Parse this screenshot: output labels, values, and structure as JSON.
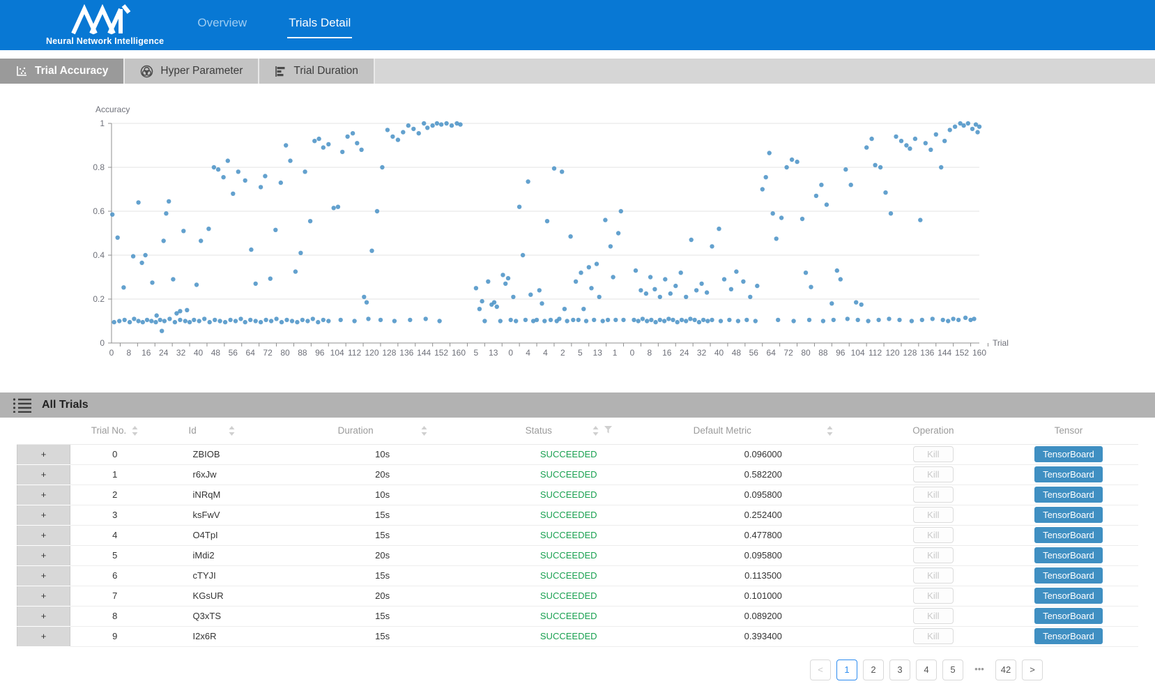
{
  "header": {
    "logo_title": "Neural Network Intelligence",
    "nav": [
      {
        "label": "Overview",
        "active": false
      },
      {
        "label": "Trials Detail",
        "active": true
      }
    ]
  },
  "tabs": [
    {
      "label": "Trial Accuracy",
      "icon": "scatter-plot-icon",
      "active": true
    },
    {
      "label": "Hyper Parameter",
      "icon": "wheel-icon",
      "active": false
    },
    {
      "label": "Trial Duration",
      "icon": "bar-chart-icon",
      "active": false
    }
  ],
  "colors": {
    "navbar": "#0878d4",
    "dot": "#4d94c7",
    "succeeded": "#19a050",
    "tensorboard_button": "#3f8fc2",
    "pager_active": "#2d8cf0"
  },
  "chart_data": {
    "type": "scatter",
    "title": "Accuracy",
    "xlabel": "Trial",
    "ylabel": "Accuracy",
    "ylim": [
      0,
      1
    ],
    "grid": true,
    "y_ticks": [
      0,
      0.2,
      0.4,
      0.6,
      0.8,
      1
    ],
    "x_tick_labels": [
      "0",
      "8",
      "16",
      "24",
      "32",
      "40",
      "48",
      "56",
      "64",
      "72",
      "80",
      "88",
      "96",
      "104",
      "112",
      "120",
      "128",
      "136",
      "144",
      "152",
      "160",
      "5",
      "13",
      "0",
      "4",
      "4",
      "2",
      "5",
      "13",
      "1",
      "0",
      "8",
      "16",
      "24",
      "32",
      "40",
      "48",
      "56",
      "64",
      "72",
      "80",
      "88",
      "96",
      "104",
      "112",
      "120",
      "128",
      "136",
      "144",
      "152",
      "160"
    ],
    "points": [
      [
        0.05,
        0.585
      ],
      [
        0.15,
        0.095
      ],
      [
        0.35,
        0.48
      ],
      [
        0.45,
        0.1
      ],
      [
        0.7,
        0.253
      ],
      [
        0.75,
        0.105
      ],
      [
        1.05,
        0.095
      ],
      [
        1.25,
        0.395
      ],
      [
        1.3,
        0.11
      ],
      [
        1.55,
        0.64
      ],
      [
        1.55,
        0.1
      ],
      [
        1.75,
        0.365
      ],
      [
        1.8,
        0.095
      ],
      [
        1.95,
        0.4
      ],
      [
        2.05,
        0.105
      ],
      [
        2.3,
        0.1
      ],
      [
        2.35,
        0.275
      ],
      [
        2.55,
        0.095
      ],
      [
        2.6,
        0.125
      ],
      [
        2.8,
        0.105
      ],
      [
        2.9,
        0.055
      ],
      [
        3.0,
        0.465
      ],
      [
        3.05,
        0.1
      ],
      [
        3.15,
        0.59
      ],
      [
        3.3,
        0.645
      ],
      [
        3.35,
        0.11
      ],
      [
        3.55,
        0.29
      ],
      [
        3.65,
        0.095
      ],
      [
        3.75,
        0.135
      ],
      [
        3.95,
        0.145
      ],
      [
        3.95,
        0.105
      ],
      [
        4.15,
        0.51
      ],
      [
        4.25,
        0.1
      ],
      [
        4.35,
        0.15
      ],
      [
        4.5,
        0.095
      ],
      [
        4.75,
        0.105
      ],
      [
        4.9,
        0.265
      ],
      [
        5.05,
        0.1
      ],
      [
        5.15,
        0.465
      ],
      [
        5.35,
        0.11
      ],
      [
        5.6,
        0.52
      ],
      [
        5.65,
        0.095
      ],
      [
        5.9,
        0.8
      ],
      [
        5.95,
        0.105
      ],
      [
        6.15,
        0.79
      ],
      [
        6.25,
        0.1
      ],
      [
        6.45,
        0.755
      ],
      [
        6.55,
        0.095
      ],
      [
        6.7,
        0.83
      ],
      [
        6.85,
        0.105
      ],
      [
        7.0,
        0.68
      ],
      [
        7.15,
        0.1
      ],
      [
        7.3,
        0.78
      ],
      [
        7.45,
        0.11
      ],
      [
        7.7,
        0.74
      ],
      [
        7.7,
        0.095
      ],
      [
        8.0,
        0.105
      ],
      [
        8.05,
        0.425
      ],
      [
        8.3,
        0.27
      ],
      [
        8.3,
        0.1
      ],
      [
        8.6,
        0.71
      ],
      [
        8.6,
        0.095
      ],
      [
        8.85,
        0.76
      ],
      [
        8.9,
        0.105
      ],
      [
        9.15,
        0.293
      ],
      [
        9.2,
        0.1
      ],
      [
        9.45,
        0.515
      ],
      [
        9.5,
        0.11
      ],
      [
        9.75,
        0.73
      ],
      [
        9.8,
        0.095
      ],
      [
        10.05,
        0.9
      ],
      [
        10.1,
        0.105
      ],
      [
        10.3,
        0.83
      ],
      [
        10.4,
        0.1
      ],
      [
        10.6,
        0.325
      ],
      [
        10.7,
        0.095
      ],
      [
        10.9,
        0.41
      ],
      [
        11.0,
        0.105
      ],
      [
        11.15,
        0.78
      ],
      [
        11.3,
        0.1
      ],
      [
        11.45,
        0.555
      ],
      [
        11.6,
        0.11
      ],
      [
        11.7,
        0.92
      ],
      [
        11.9,
        0.095
      ],
      [
        11.95,
        0.93
      ],
      [
        12.2,
        0.89
      ],
      [
        12.2,
        0.105
      ],
      [
        12.5,
        0.905
      ],
      [
        12.5,
        0.1
      ],
      [
        12.8,
        0.615
      ],
      [
        13.05,
        0.62
      ],
      [
        13.2,
        0.105
      ],
      [
        13.3,
        0.87
      ],
      [
        13.6,
        0.94
      ],
      [
        13.9,
        0.955
      ],
      [
        14.0,
        0.1
      ],
      [
        14.15,
        0.91
      ],
      [
        14.4,
        0.88
      ],
      [
        14.55,
        0.21
      ],
      [
        14.7,
        0.185
      ],
      [
        14.8,
        0.11
      ],
      [
        15.0,
        0.42
      ],
      [
        15.3,
        0.6
      ],
      [
        15.5,
        0.105
      ],
      [
        15.6,
        0.8
      ],
      [
        15.9,
        0.97
      ],
      [
        16.2,
        0.94
      ],
      [
        16.3,
        0.1
      ],
      [
        16.5,
        0.925
      ],
      [
        16.8,
        0.96
      ],
      [
        17.1,
        0.99
      ],
      [
        17.2,
        0.105
      ],
      [
        17.4,
        0.975
      ],
      [
        17.7,
        0.955
      ],
      [
        18.0,
        1.0
      ],
      [
        18.1,
        0.11
      ],
      [
        18.2,
        0.98
      ],
      [
        18.5,
        0.99
      ],
      [
        18.75,
        1.0
      ],
      [
        18.9,
        0.1
      ],
      [
        19.0,
        0.995
      ],
      [
        19.3,
        1.0
      ],
      [
        19.6,
        0.99
      ],
      [
        19.9,
        1.0
      ],
      [
        20.1,
        0.995
      ],
      [
        21.0,
        0.25
      ],
      [
        21.2,
        0.155
      ],
      [
        21.35,
        0.19
      ],
      [
        21.5,
        0.1
      ],
      [
        21.7,
        0.28
      ],
      [
        21.9,
        0.175
      ],
      [
        22.05,
        0.185
      ],
      [
        22.2,
        0.165
      ],
      [
        22.4,
        0.1
      ],
      [
        22.55,
        0.31
      ],
      [
        22.7,
        0.27
      ],
      [
        22.85,
        0.295
      ],
      [
        23.0,
        0.105
      ],
      [
        23.15,
        0.21
      ],
      [
        23.3,
        0.1
      ],
      [
        23.5,
        0.62
      ],
      [
        23.7,
        0.4
      ],
      [
        23.85,
        0.105
      ],
      [
        24.0,
        0.735
      ],
      [
        24.15,
        0.22
      ],
      [
        24.3,
        0.1
      ],
      [
        24.5,
        0.105
      ],
      [
        24.65,
        0.24
      ],
      [
        24.8,
        0.18
      ],
      [
        24.95,
        0.1
      ],
      [
        25.1,
        0.555
      ],
      [
        25.3,
        0.105
      ],
      [
        25.5,
        0.795
      ],
      [
        25.65,
        0.1
      ],
      [
        25.8,
        0.11
      ],
      [
        25.95,
        0.78
      ],
      [
        26.1,
        0.155
      ],
      [
        26.25,
        0.1
      ],
      [
        26.45,
        0.485
      ],
      [
        26.6,
        0.105
      ],
      [
        26.75,
        0.28
      ],
      [
        26.9,
        0.105
      ],
      [
        27.05,
        0.32
      ],
      [
        27.2,
        0.155
      ],
      [
        27.35,
        0.1
      ],
      [
        27.5,
        0.345
      ],
      [
        27.65,
        0.25
      ],
      [
        27.8,
        0.105
      ],
      [
        27.95,
        0.36
      ],
      [
        28.1,
        0.21
      ],
      [
        28.3,
        0.1
      ],
      [
        28.45,
        0.56
      ],
      [
        28.6,
        0.105
      ],
      [
        28.75,
        0.44
      ],
      [
        28.9,
        0.3
      ],
      [
        29.05,
        0.105
      ],
      [
        29.2,
        0.5
      ],
      [
        29.35,
        0.6
      ],
      [
        29.5,
        0.105
      ],
      [
        30.1,
        0.105
      ],
      [
        30.2,
        0.33
      ],
      [
        30.35,
        0.1
      ],
      [
        30.5,
        0.24
      ],
      [
        30.6,
        0.11
      ],
      [
        30.8,
        0.225
      ],
      [
        30.85,
        0.1
      ],
      [
        31.05,
        0.3
      ],
      [
        31.1,
        0.105
      ],
      [
        31.3,
        0.245
      ],
      [
        31.35,
        0.095
      ],
      [
        31.6,
        0.21
      ],
      [
        31.6,
        0.105
      ],
      [
        31.85,
        0.1
      ],
      [
        31.9,
        0.29
      ],
      [
        32.1,
        0.11
      ],
      [
        32.2,
        0.225
      ],
      [
        32.35,
        0.105
      ],
      [
        32.5,
        0.26
      ],
      [
        32.6,
        0.095
      ],
      [
        32.8,
        0.32
      ],
      [
        32.85,
        0.105
      ],
      [
        33.1,
        0.21
      ],
      [
        33.1,
        0.1
      ],
      [
        33.35,
        0.11
      ],
      [
        33.4,
        0.47
      ],
      [
        33.6,
        0.105
      ],
      [
        33.7,
        0.24
      ],
      [
        33.85,
        0.095
      ],
      [
        34.0,
        0.27
      ],
      [
        34.1,
        0.105
      ],
      [
        34.3,
        0.23
      ],
      [
        34.35,
        0.1
      ],
      [
        34.6,
        0.44
      ],
      [
        34.6,
        0.105
      ],
      [
        35.0,
        0.52
      ],
      [
        35.1,
        0.1
      ],
      [
        35.3,
        0.29
      ],
      [
        35.6,
        0.105
      ],
      [
        35.7,
        0.245
      ],
      [
        36.0,
        0.325
      ],
      [
        36.1,
        0.1
      ],
      [
        36.4,
        0.28
      ],
      [
        36.6,
        0.105
      ],
      [
        36.8,
        0.21
      ],
      [
        37.1,
        0.1
      ],
      [
        37.2,
        0.26
      ],
      [
        37.5,
        0.7
      ],
      [
        37.7,
        0.755
      ],
      [
        37.9,
        0.865
      ],
      [
        38.1,
        0.59
      ],
      [
        38.3,
        0.475
      ],
      [
        38.4,
        0.105
      ],
      [
        38.6,
        0.57
      ],
      [
        38.9,
        0.8
      ],
      [
        39.2,
        0.835
      ],
      [
        39.3,
        0.1
      ],
      [
        39.5,
        0.825
      ],
      [
        39.8,
        0.565
      ],
      [
        40.0,
        0.32
      ],
      [
        40.2,
        0.105
      ],
      [
        40.3,
        0.255
      ],
      [
        40.6,
        0.67
      ],
      [
        40.9,
        0.72
      ],
      [
        41.0,
        0.1
      ],
      [
        41.2,
        0.63
      ],
      [
        41.5,
        0.18
      ],
      [
        41.6,
        0.105
      ],
      [
        41.8,
        0.33
      ],
      [
        42.0,
        0.29
      ],
      [
        42.3,
        0.79
      ],
      [
        42.4,
        0.11
      ],
      [
        42.6,
        0.72
      ],
      [
        42.9,
        0.185
      ],
      [
        43.0,
        0.105
      ],
      [
        43.2,
        0.175
      ],
      [
        43.5,
        0.89
      ],
      [
        43.6,
        0.1
      ],
      [
        43.8,
        0.93
      ],
      [
        44.0,
        0.81
      ],
      [
        44.2,
        0.105
      ],
      [
        44.3,
        0.8
      ],
      [
        44.6,
        0.685
      ],
      [
        44.8,
        0.11
      ],
      [
        44.9,
        0.59
      ],
      [
        45.2,
        0.94
      ],
      [
        45.4,
        0.105
      ],
      [
        45.5,
        0.92
      ],
      [
        45.8,
        0.9
      ],
      [
        46.0,
        0.885
      ],
      [
        46.1,
        0.1
      ],
      [
        46.3,
        0.93
      ],
      [
        46.6,
        0.56
      ],
      [
        46.7,
        0.105
      ],
      [
        46.9,
        0.91
      ],
      [
        47.2,
        0.88
      ],
      [
        47.3,
        0.11
      ],
      [
        47.5,
        0.95
      ],
      [
        47.8,
        0.8
      ],
      [
        47.9,
        0.105
      ],
      [
        48.0,
        0.92
      ],
      [
        48.2,
        0.1
      ],
      [
        48.3,
        0.97
      ],
      [
        48.5,
        0.11
      ],
      [
        48.6,
        0.985
      ],
      [
        48.8,
        0.105
      ],
      [
        48.9,
        1.0
      ],
      [
        49.1,
        0.99
      ],
      [
        49.2,
        0.115
      ],
      [
        49.35,
        1.0
      ],
      [
        49.5,
        0.105
      ],
      [
        49.6,
        0.975
      ],
      [
        49.7,
        0.11
      ],
      [
        49.8,
        0.995
      ],
      [
        49.9,
        0.96
      ],
      [
        50.0,
        0.985
      ]
    ]
  },
  "table": {
    "section_title": "All Trials",
    "expand_label": "+",
    "kill_label": "Kill",
    "tensorboard_label": "TensorBoard",
    "columns": [
      {
        "label": "Trial No.",
        "sortable": true,
        "filterable": false
      },
      {
        "label": "Id",
        "sortable": true,
        "filterable": false
      },
      {
        "label": "Duration",
        "sortable": true,
        "filterable": false
      },
      {
        "label": "Status",
        "sortable": true,
        "filterable": true
      },
      {
        "label": "Default Metric",
        "sortable": true,
        "filterable": false
      },
      {
        "label": "Operation",
        "sortable": false,
        "filterable": false
      },
      {
        "label": "Tensor",
        "sortable": false,
        "filterable": false
      }
    ],
    "rows": [
      {
        "no": "0",
        "id": "ZBIOB",
        "duration": "10s",
        "status": "SUCCEEDED",
        "metric": "0.096000"
      },
      {
        "no": "1",
        "id": "r6xJw",
        "duration": "20s",
        "status": "SUCCEEDED",
        "metric": "0.582200"
      },
      {
        "no": "2",
        "id": "iNRqM",
        "duration": "10s",
        "status": "SUCCEEDED",
        "metric": "0.095800"
      },
      {
        "no": "3",
        "id": "ksFwV",
        "duration": "15s",
        "status": "SUCCEEDED",
        "metric": "0.252400"
      },
      {
        "no": "4",
        "id": "O4TpI",
        "duration": "15s",
        "status": "SUCCEEDED",
        "metric": "0.477800"
      },
      {
        "no": "5",
        "id": "iMdi2",
        "duration": "20s",
        "status": "SUCCEEDED",
        "metric": "0.095800"
      },
      {
        "no": "6",
        "id": "cTYJI",
        "duration": "15s",
        "status": "SUCCEEDED",
        "metric": "0.113500"
      },
      {
        "no": "7",
        "id": "KGsUR",
        "duration": "20s",
        "status": "SUCCEEDED",
        "metric": "0.101000"
      },
      {
        "no": "8",
        "id": "Q3xTS",
        "duration": "15s",
        "status": "SUCCEEDED",
        "metric": "0.089200"
      },
      {
        "no": "9",
        "id": "I2x6R",
        "duration": "15s",
        "status": "SUCCEEDED",
        "metric": "0.393400"
      }
    ]
  },
  "pagination": {
    "prev": "<",
    "next": ">",
    "pages": [
      "1",
      "2",
      "3",
      "4",
      "5",
      "...",
      "42"
    ],
    "active_page": "1"
  }
}
